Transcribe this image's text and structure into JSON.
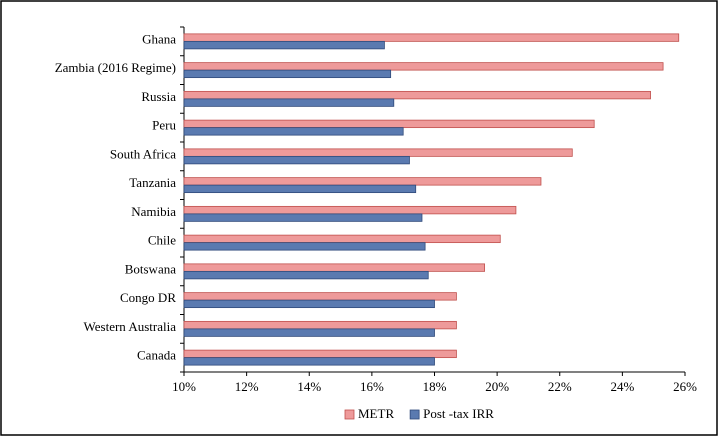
{
  "chart_data": {
    "type": "hbar",
    "categories": [
      "Ghana",
      "Zambia (2016 Regime)",
      "Russia",
      "Peru",
      "South Africa",
      "Tanzania",
      "Namibia",
      "Chile",
      "Botswana",
      "Congo DR",
      "Western Australia",
      "Canada"
    ],
    "series": [
      {
        "name": "METR",
        "color": "#ee9a9a",
        "values": [
          25.8,
          25.3,
          24.9,
          23.1,
          22.4,
          21.4,
          20.6,
          20.1,
          19.6,
          18.7,
          18.7,
          18.7
        ]
      },
      {
        "name": "Post -tax IRR",
        "color": "#5a7ab0",
        "values": [
          16.4,
          16.6,
          16.7,
          17.0,
          17.2,
          17.4,
          17.6,
          17.7,
          17.8,
          18.0,
          18.0,
          18.0
        ]
      }
    ],
    "xlim": [
      10,
      26
    ],
    "xticks": [
      {
        "value": 10,
        "label": "10%"
      },
      {
        "value": 12,
        "label": "12%"
      },
      {
        "value": 14,
        "label": "14%"
      },
      {
        "value": 16,
        "label": "16%"
      },
      {
        "value": 18,
        "label": "18%"
      },
      {
        "value": 20,
        "label": "20%"
      },
      {
        "value": 22,
        "label": "22%"
      },
      {
        "value": 24,
        "label": "24%"
      },
      {
        "value": 26,
        "label": "26%"
      }
    ],
    "legend": "bottom"
  }
}
